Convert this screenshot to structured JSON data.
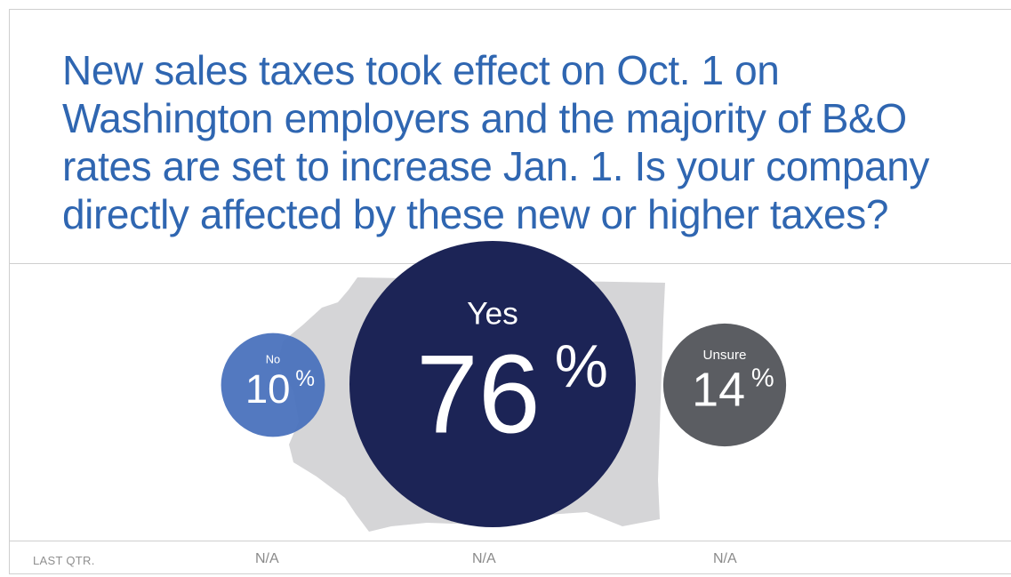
{
  "headline": "New sales taxes took effect on Oct. 1 on Washington employers and the majority of B&O rates are set to increase Jan. 1. Is your company directly affected by these new or higher taxes?",
  "chart_data": {
    "type": "bubble",
    "categories": [
      "No",
      "Yes",
      "Unsure"
    ],
    "values": [
      10,
      76,
      14
    ],
    "unit": "%",
    "colors": [
      "#4a72bd",
      "#1c2456",
      "#5b5d62"
    ],
    "background_map": "Washington state silhouette (gray)",
    "map_color": "#d5d5d7"
  },
  "footer": {
    "label": "LAST QTR.",
    "values": [
      "N/A",
      "N/A",
      "N/A"
    ]
  }
}
